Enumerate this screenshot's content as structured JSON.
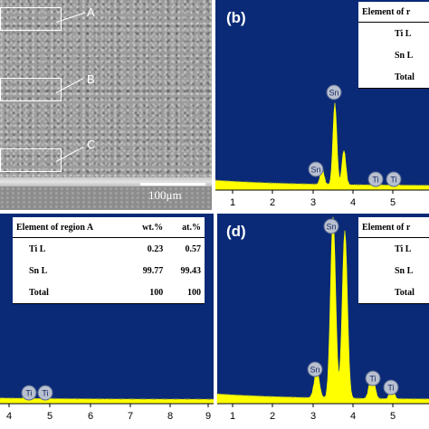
{
  "figure": {
    "sem": {
      "regions": [
        "A",
        "B",
        "C"
      ],
      "scale_bar": "100μm"
    },
    "panel_b": {
      "letter": "(b)",
      "table": {
        "header": "Element of r",
        "rows": [
          "Ti L",
          "Sn L",
          "Total"
        ]
      },
      "xticks": [
        "1",
        "2",
        "3",
        "4",
        "5"
      ],
      "peaks": [
        "Sn",
        "Sn",
        "Ti",
        "Ti"
      ]
    },
    "panel_c": {
      "table": {
        "headers": [
          "Element of region A",
          "wt.%",
          "at.%"
        ],
        "rows": [
          {
            "element": "Ti L",
            "wt": "0.23",
            "at": "0.57"
          },
          {
            "element": "Sn L",
            "wt": "99.77",
            "at": "99.43"
          },
          {
            "element": "Total",
            "wt": "100",
            "at": "100"
          }
        ]
      },
      "xticks": [
        "4",
        "5",
        "6",
        "7",
        "8",
        "9"
      ],
      "peaks": [
        "Ti",
        "Ti"
      ]
    },
    "panel_d": {
      "letter": "(d)",
      "table": {
        "header": "Element of r",
        "rows": [
          "Ti L",
          "Sn L",
          "Total"
        ]
      },
      "xticks": [
        "1",
        "2",
        "3",
        "4",
        "5"
      ],
      "peaks": [
        "Sn",
        "Sn",
        "Ti",
        "Ti"
      ]
    },
    "colors": {
      "plot_bg": "#0a2a78",
      "spectrum": "#ffff00",
      "peak_label_bg": "#b8c0d0"
    }
  }
}
